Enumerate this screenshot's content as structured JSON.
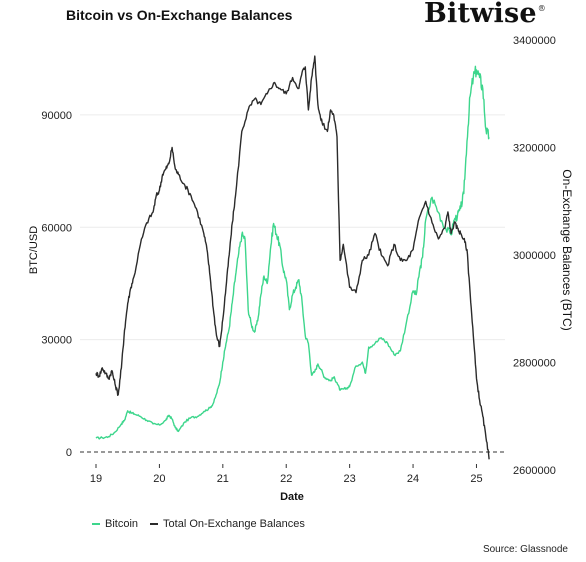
{
  "header": {
    "title": "Bitcoin vs On-Exchange Balances",
    "logo_text": "Bitwise",
    "logo_mark": "®"
  },
  "source": "Source: Glassnode",
  "colors": {
    "bitcoin": "#3dd68c",
    "balances": "#2b2b2b",
    "grid": "#ececec",
    "zero_line": "#333333"
  },
  "chart_data": {
    "type": "line",
    "title": "Bitcoin vs On-Exchange Balances",
    "xlabel": "Date",
    "ylabel_left": "BTC/USD",
    "ylabel_right": "On-Exchange Balances (BTC)",
    "x_ticks": [
      "19",
      "20",
      "21",
      "22",
      "23",
      "24",
      "25"
    ],
    "x_range": [
      2019.0,
      2025.45
    ],
    "y_left_range": [
      0,
      110000
    ],
    "y_left_ticks": [
      0,
      30000,
      60000,
      90000
    ],
    "y_left_tick_labels": [
      "0",
      "30000",
      "60000",
      "90000"
    ],
    "y_right_range": [
      2600000,
      3400000
    ],
    "y_right_ticks": [
      2600000,
      2800000,
      3000000,
      3200000,
      3400000
    ],
    "y_right_tick_labels": [
      "2600000",
      "2800000",
      "3000000",
      "3200000",
      "3400000"
    ],
    "grid": true,
    "zero_line": "dashed",
    "legend_position": "bottom-left",
    "series": [
      {
        "name": "Bitcoin",
        "axis": "left",
        "x": [
          2019.0,
          2019.1,
          2019.2,
          2019.3,
          2019.4,
          2019.45,
          2019.5,
          2019.55,
          2019.6,
          2019.7,
          2019.8,
          2019.9,
          2020.0,
          2020.1,
          2020.15,
          2020.2,
          2020.25,
          2020.3,
          2020.4,
          2020.5,
          2020.6,
          2020.7,
          2020.8,
          2020.85,
          2020.9,
          2020.95,
          2021.0,
          2021.05,
          2021.1,
          2021.15,
          2021.2,
          2021.25,
          2021.3,
          2021.35,
          2021.4,
          2021.45,
          2021.5,
          2021.55,
          2021.6,
          2021.65,
          2021.7,
          2021.75,
          2021.8,
          2021.85,
          2021.9,
          2021.95,
          2022.0,
          2022.05,
          2022.1,
          2022.15,
          2022.2,
          2022.25,
          2022.3,
          2022.35,
          2022.4,
          2022.45,
          2022.5,
          2022.55,
          2022.6,
          2022.65,
          2022.7,
          2022.75,
          2022.8,
          2022.85,
          2022.9,
          2022.95,
          2023.0,
          2023.1,
          2023.2,
          2023.25,
          2023.3,
          2023.4,
          2023.5,
          2023.6,
          2023.7,
          2023.8,
          2023.9,
          2024.0,
          2024.05,
          2024.1,
          2024.15,
          2024.2,
          2024.3,
          2024.4,
          2024.5,
          2024.6,
          2024.65,
          2024.7,
          2024.75,
          2024.8,
          2024.85,
          2024.9,
          2024.95,
          2025.0,
          2025.05,
          2025.1,
          2025.15,
          2025.2
        ],
        "values": [
          3700,
          3800,
          4100,
          5300,
          7500,
          8500,
          11000,
          10500,
          10200,
          9500,
          8500,
          7500,
          7200,
          8500,
          9800,
          8800,
          6500,
          5500,
          8000,
          9200,
          9500,
          10800,
          11800,
          13000,
          15500,
          18500,
          24000,
          29000,
          33000,
          40000,
          47000,
          53000,
          58000,
          57000,
          38000,
          34000,
          32000,
          35000,
          42000,
          47000,
          45000,
          54000,
          61000,
          58000,
          55000,
          49000,
          46000,
          38000,
          42000,
          44000,
          46000,
          40000,
          31000,
          29000,
          20500,
          21500,
          23500,
          22000,
          20000,
          19500,
          19000,
          20000,
          18500,
          16500,
          16800,
          17000,
          17500,
          23000,
          24000,
          21000,
          28000,
          29000,
          30500,
          29000,
          26000,
          27000,
          35000,
          43000,
          42000,
          48000,
          52000,
          62000,
          68000,
          64000,
          60000,
          58000,
          62000,
          63000,
          65000,
          69000,
          83000,
          95000,
          100000,
          102000,
          100000,
          97000,
          86000,
          84000
        ]
      },
      {
        "name": "Total On-Exchange Balances",
        "axis": "right",
        "x": [
          2019.0,
          2019.05,
          2019.1,
          2019.15,
          2019.2,
          2019.25,
          2019.3,
          2019.35,
          2019.4,
          2019.45,
          2019.5,
          2019.55,
          2019.6,
          2019.7,
          2019.8,
          2019.9,
          2019.95,
          2020.0,
          2020.05,
          2020.1,
          2020.15,
          2020.2,
          2020.25,
          2020.3,
          2020.4,
          2020.5,
          2020.6,
          2020.7,
          2020.75,
          2020.8,
          2020.85,
          2020.9,
          2020.95,
          2021.0,
          2021.05,
          2021.1,
          2021.15,
          2021.2,
          2021.3,
          2021.4,
          2021.5,
          2021.6,
          2021.7,
          2021.8,
          2021.9,
          2022.0,
          2022.1,
          2022.2,
          2022.25,
          2022.3,
          2022.35,
          2022.4,
          2022.45,
          2022.5,
          2022.55,
          2022.6,
          2022.65,
          2022.7,
          2022.75,
          2022.8,
          2022.85,
          2022.9,
          2023.0,
          2023.1,
          2023.2,
          2023.3,
          2023.4,
          2023.5,
          2023.6,
          2023.7,
          2023.8,
          2023.9,
          2024.0,
          2024.1,
          2024.2,
          2024.3,
          2024.4,
          2024.5,
          2024.55,
          2024.6,
          2024.65,
          2024.7,
          2024.75,
          2024.8,
          2024.85,
          2024.9,
          2024.95,
          2025.0,
          2025.05,
          2025.1,
          2025.15,
          2025.2
        ],
        "values": [
          2780000,
          2775000,
          2790000,
          2780000,
          2770000,
          2785000,
          2760000,
          2740000,
          2790000,
          2860000,
          2910000,
          2940000,
          2960000,
          3020000,
          3060000,
          3080000,
          3110000,
          3120000,
          3150000,
          3160000,
          3170000,
          3200000,
          3160000,
          3150000,
          3130000,
          3110000,
          3080000,
          3040000,
          3010000,
          2960000,
          2900000,
          2850000,
          2830000,
          2880000,
          2940000,
          3000000,
          3060000,
          3110000,
          3230000,
          3270000,
          3290000,
          3280000,
          3300000,
          3320000,
          3310000,
          3300000,
          3330000,
          3310000,
          3340000,
          3350000,
          3270000,
          3330000,
          3370000,
          3280000,
          3250000,
          3240000,
          3230000,
          3270000,
          3260000,
          3220000,
          2990000,
          3020000,
          2940000,
          2930000,
          2990000,
          3000000,
          3040000,
          3000000,
          2980000,
          3020000,
          2990000,
          2990000,
          3010000,
          3070000,
          3100000,
          3060000,
          3030000,
          3050000,
          3080000,
          3040000,
          3060000,
          3050000,
          3040000,
          3030000,
          3010000,
          2930000,
          2850000,
          2770000,
          2730000,
          2700000,
          2660000,
          2620000
        ]
      }
    ]
  },
  "legend": [
    {
      "label": "Bitcoin",
      "color": "#3dd68c"
    },
    {
      "label": "Total On-Exchange Balances",
      "color": "#2b2b2b"
    }
  ]
}
